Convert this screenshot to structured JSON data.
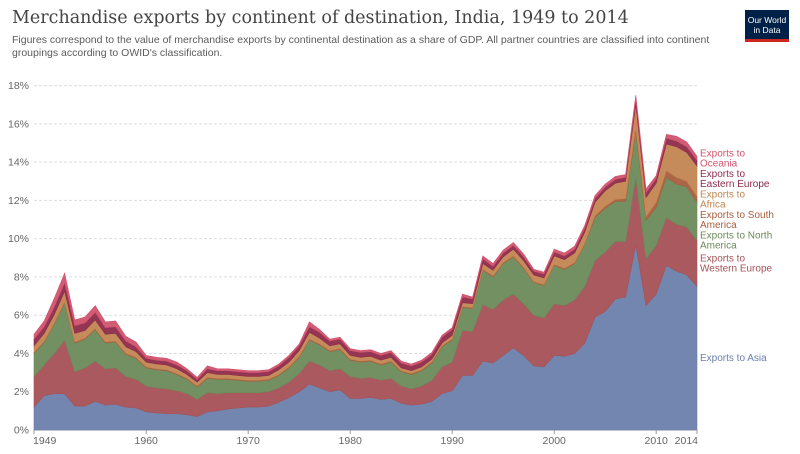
{
  "header": {
    "title": "Merchandise exports by continent of destination, India, 1949 to 2014",
    "subtitle": "Figures correspond to the value of merchandise exports by continental destination as a share of GDP. All partner countries are classified into continent groupings according to OWID's classification."
  },
  "logo": {
    "line1": "Our World",
    "line2": "in Data"
  },
  "chart_data": {
    "type": "area",
    "stacked": true,
    "x": [
      1949,
      1950,
      1951,
      1952,
      1953,
      1954,
      1955,
      1956,
      1957,
      1958,
      1959,
      1960,
      1961,
      1962,
      1963,
      1964,
      1965,
      1966,
      1967,
      1968,
      1969,
      1970,
      1971,
      1972,
      1973,
      1974,
      1975,
      1976,
      1977,
      1978,
      1979,
      1980,
      1981,
      1982,
      1983,
      1984,
      1985,
      1986,
      1987,
      1988,
      1989,
      1990,
      1991,
      1992,
      1993,
      1994,
      1995,
      1996,
      1997,
      1998,
      1999,
      2000,
      2001,
      2002,
      2003,
      2004,
      2005,
      2006,
      2007,
      2008,
      2009,
      2010,
      2011,
      2012,
      2013,
      2014
    ],
    "xlim": [
      1949,
      2014
    ],
    "ylim": [
      0,
      18.5
    ],
    "yticks": [
      0,
      2,
      4,
      6,
      8,
      10,
      12,
      14,
      16,
      18
    ],
    "ytick_suffix": "%",
    "xticks": [
      1949,
      1960,
      1970,
      1980,
      1990,
      2000,
      2010,
      2014
    ],
    "grid": "horizontal",
    "legend": "right-labels",
    "series": [
      {
        "name": "Exports to Asia",
        "color": "#6b7fab",
        "values": [
          1.2,
          1.8,
          1.9,
          1.9,
          1.25,
          1.25,
          1.5,
          1.3,
          1.35,
          1.2,
          1.15,
          0.95,
          0.9,
          0.85,
          0.85,
          0.8,
          0.7,
          0.95,
          1.0,
          1.1,
          1.15,
          1.2,
          1.2,
          1.25,
          1.45,
          1.7,
          2.0,
          2.4,
          2.2,
          2.0,
          2.1,
          1.65,
          1.65,
          1.7,
          1.6,
          1.65,
          1.4,
          1.3,
          1.35,
          1.5,
          1.9,
          2.05,
          2.85,
          2.85,
          3.6,
          3.5,
          3.9,
          4.3,
          3.9,
          3.35,
          3.3,
          3.9,
          3.85,
          4.0,
          4.55,
          5.9,
          6.2,
          6.85,
          6.95,
          9.7,
          6.5,
          7.1,
          8.6,
          8.3,
          8.1,
          7.5
        ]
      },
      {
        "name": "Exports to Western Europe",
        "color": "#a55156",
        "values": [
          1.6,
          1.6,
          2.1,
          2.8,
          1.8,
          2.0,
          2.1,
          1.9,
          1.9,
          1.6,
          1.5,
          1.35,
          1.3,
          1.3,
          1.2,
          1.1,
          0.9,
          1.0,
          0.9,
          0.85,
          0.8,
          0.75,
          0.75,
          0.75,
          0.75,
          0.8,
          0.95,
          1.2,
          1.2,
          1.1,
          1.1,
          1.15,
          1.05,
          1.05,
          1.0,
          1.05,
          0.9,
          0.85,
          0.95,
          1.1,
          1.4,
          1.5,
          2.35,
          2.3,
          2.95,
          2.8,
          2.9,
          2.8,
          2.7,
          2.65,
          2.55,
          2.7,
          2.65,
          2.8,
          2.95,
          2.95,
          3.1,
          3.0,
          2.9,
          3.5,
          2.45,
          2.55,
          2.5,
          2.45,
          2.5,
          2.4
        ]
      },
      {
        "name": "Exports to North America",
        "color": "#6c8a5a",
        "values": [
          1.2,
          1.2,
          1.55,
          1.95,
          1.5,
          1.5,
          1.65,
          1.35,
          1.35,
          1.15,
          1.1,
          0.95,
          0.95,
          0.95,
          0.85,
          0.75,
          0.65,
          0.75,
          0.75,
          0.7,
          0.65,
          0.6,
          0.6,
          0.6,
          0.65,
          0.75,
          0.85,
          1.1,
          1.05,
          1.0,
          1.0,
          0.85,
          0.85,
          0.85,
          0.8,
          0.85,
          0.75,
          0.75,
          0.8,
          0.9,
          1.05,
          1.15,
          1.2,
          1.2,
          1.8,
          1.7,
          1.9,
          1.95,
          1.85,
          1.7,
          1.7,
          2.0,
          1.9,
          1.9,
          2.2,
          2.25,
          2.3,
          2.1,
          2.1,
          2.4,
          2.0,
          2.0,
          2.1,
          2.1,
          2.1,
          2.0
        ]
      },
      {
        "name": "Exports to South America",
        "color": "#a85d3c",
        "values": [
          0.05,
          0.05,
          0.05,
          0.05,
          0.05,
          0.05,
          0.05,
          0.05,
          0.05,
          0.05,
          0.05,
          0.05,
          0.05,
          0.05,
          0.05,
          0.05,
          0.05,
          0.05,
          0.05,
          0.05,
          0.05,
          0.05,
          0.05,
          0.05,
          0.05,
          0.05,
          0.05,
          0.05,
          0.05,
          0.05,
          0.05,
          0.05,
          0.05,
          0.05,
          0.05,
          0.05,
          0.05,
          0.05,
          0.05,
          0.05,
          0.05,
          0.05,
          0.05,
          0.05,
          0.05,
          0.05,
          0.05,
          0.05,
          0.05,
          0.05,
          0.05,
          0.05,
          0.05,
          0.05,
          0.05,
          0.1,
          0.1,
          0.1,
          0.15,
          0.2,
          0.2,
          0.25,
          0.35,
          0.35,
          0.3,
          0.3
        ]
      },
      {
        "name": "Exports to Africa",
        "color": "#c38551",
        "values": [
          0.35,
          0.4,
          0.45,
          0.55,
          0.45,
          0.4,
          0.45,
          0.4,
          0.4,
          0.35,
          0.3,
          0.25,
          0.25,
          0.25,
          0.25,
          0.2,
          0.2,
          0.25,
          0.2,
          0.2,
          0.2,
          0.2,
          0.2,
          0.2,
          0.25,
          0.25,
          0.3,
          0.35,
          0.3,
          0.25,
          0.25,
          0.2,
          0.2,
          0.2,
          0.2,
          0.2,
          0.15,
          0.15,
          0.15,
          0.15,
          0.15,
          0.2,
          0.2,
          0.2,
          0.3,
          0.3,
          0.3,
          0.35,
          0.35,
          0.35,
          0.35,
          0.45,
          0.45,
          0.5,
          0.6,
          0.7,
          0.8,
          0.85,
          0.9,
          1.2,
          1.0,
          1.0,
          1.4,
          1.6,
          1.5,
          1.6
        ]
      },
      {
        "name": "Exports to Eastern Europe",
        "color": "#8e2b4a",
        "values": [
          0.35,
          0.35,
          0.4,
          0.45,
          0.4,
          0.4,
          0.4,
          0.35,
          0.35,
          0.3,
          0.25,
          0.2,
          0.2,
          0.2,
          0.2,
          0.2,
          0.15,
          0.2,
          0.2,
          0.2,
          0.2,
          0.2,
          0.2,
          0.2,
          0.2,
          0.25,
          0.25,
          0.3,
          0.3,
          0.25,
          0.25,
          0.25,
          0.25,
          0.25,
          0.25,
          0.25,
          0.25,
          0.25,
          0.25,
          0.25,
          0.3,
          0.3,
          0.3,
          0.25,
          0.25,
          0.2,
          0.2,
          0.2,
          0.2,
          0.2,
          0.2,
          0.2,
          0.2,
          0.2,
          0.2,
          0.2,
          0.2,
          0.2,
          0.2,
          0.3,
          0.25,
          0.25,
          0.3,
          0.3,
          0.3,
          0.3
        ]
      },
      {
        "name": "Exports to Oceania",
        "color": "#d0536d",
        "values": [
          0.25,
          0.3,
          0.45,
          0.5,
          0.3,
          0.3,
          0.35,
          0.3,
          0.3,
          0.25,
          0.25,
          0.15,
          0.15,
          0.15,
          0.15,
          0.1,
          0.1,
          0.15,
          0.1,
          0.1,
          0.1,
          0.1,
          0.1,
          0.1,
          0.1,
          0.1,
          0.1,
          0.25,
          0.15,
          0.1,
          0.1,
          0.1,
          0.1,
          0.1,
          0.1,
          0.1,
          0.1,
          0.1,
          0.1,
          0.1,
          0.1,
          0.1,
          0.15,
          0.1,
          0.15,
          0.15,
          0.15,
          0.15,
          0.15,
          0.1,
          0.1,
          0.15,
          0.15,
          0.15,
          0.15,
          0.15,
          0.15,
          0.15,
          0.15,
          0.2,
          0.2,
          0.15,
          0.2,
          0.25,
          0.25,
          0.2
        ]
      }
    ]
  }
}
